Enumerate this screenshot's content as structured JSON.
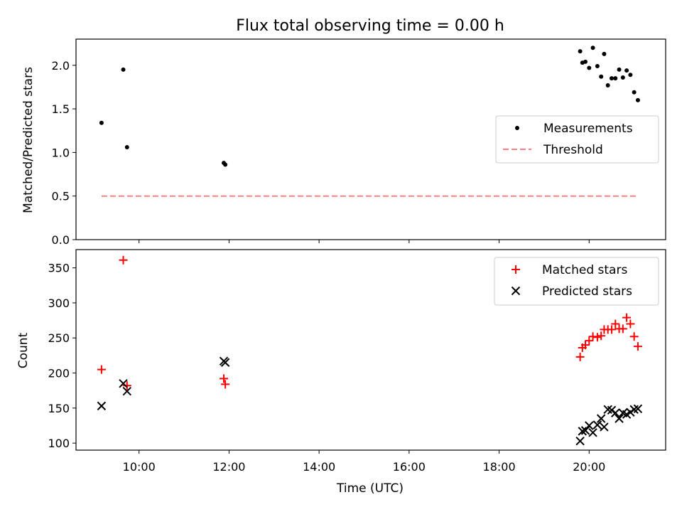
{
  "chart_data": [
    {
      "type": "scatter",
      "title": "Flux total observing time = 0.00 h",
      "xlabel": "",
      "ylabel": "Matched/Predicted stars",
      "xlim": [
        "08:36",
        "21:42"
      ],
      "ylim": [
        0,
        2.3
      ],
      "yticks": [
        0.0,
        0.5,
        1.0,
        1.5,
        2.0
      ],
      "ytick_labels": [
        "0.0",
        "0.5",
        "1.0",
        "1.5",
        "2.0"
      ],
      "grid": false,
      "legend": "center-right",
      "series": [
        {
          "name": "Measurements",
          "marker": "dot",
          "color": "#000000",
          "points": [
            [
              "09:10",
              1.34
            ],
            [
              "09:39",
              1.95
            ],
            [
              "09:44",
              1.06
            ],
            [
              "11:53",
              0.88
            ],
            [
              "11:55",
              0.86
            ],
            [
              "19:48",
              2.16
            ],
            [
              "19:51",
              2.03
            ],
            [
              "19:55",
              2.04
            ],
            [
              "20:00",
              1.97
            ],
            [
              "20:05",
              2.2
            ],
            [
              "20:11",
              1.99
            ],
            [
              "20:16",
              1.87
            ],
            [
              "20:20",
              2.13
            ],
            [
              "20:25",
              1.77
            ],
            [
              "20:30",
              1.85
            ],
            [
              "20:35",
              1.85
            ],
            [
              "20:40",
              1.95
            ],
            [
              "20:45",
              1.86
            ],
            [
              "20:50",
              1.94
            ],
            [
              "20:55",
              1.89
            ],
            [
              "21:00",
              1.69
            ],
            [
              "21:05",
              1.6
            ]
          ]
        },
        {
          "name": "Threshold",
          "marker": "dashed-line",
          "color": "#ff7f7f",
          "points": [
            [
              "09:10",
              0.5
            ],
            [
              "21:05",
              0.5
            ]
          ]
        }
      ]
    },
    {
      "type": "scatter",
      "title": "",
      "xlabel": "Time (UTC)",
      "ylabel": "Count",
      "xlim": [
        "08:36",
        "21:42"
      ],
      "ylim": [
        90,
        376
      ],
      "xticks": [
        "10:00",
        "12:00",
        "14:00",
        "16:00",
        "18:00",
        "20:00"
      ],
      "yticks": [
        100,
        150,
        200,
        250,
        300,
        350
      ],
      "ytick_labels": [
        "100",
        "150",
        "200",
        "250",
        "300",
        "350"
      ],
      "grid": false,
      "legend": "top-right",
      "series": [
        {
          "name": "Matched stars",
          "marker": "plus",
          "color": "#ff0000",
          "points": [
            [
              "09:10",
              205
            ],
            [
              "09:39",
              361
            ],
            [
              "09:44",
              182
            ],
            [
              "11:53",
              192
            ],
            [
              "11:55",
              184
            ],
            [
              "19:48",
              223
            ],
            [
              "19:51",
              236
            ],
            [
              "19:55",
              240
            ],
            [
              "20:00",
              246
            ],
            [
              "20:05",
              252
            ],
            [
              "20:11",
              251
            ],
            [
              "20:16",
              253
            ],
            [
              "20:20",
              262
            ],
            [
              "20:25",
              262
            ],
            [
              "20:30",
              262
            ],
            [
              "20:35",
              270
            ],
            [
              "20:40",
              263
            ],
            [
              "20:45",
              263
            ],
            [
              "20:50",
              279
            ],
            [
              "20:55",
              270
            ],
            [
              "21:00",
              252
            ],
            [
              "21:05",
              238
            ]
          ]
        },
        {
          "name": "Predicted stars",
          "marker": "x",
          "color": "#000000",
          "points": [
            [
              "09:10",
              153
            ],
            [
              "09:39",
              185
            ],
            [
              "09:44",
              174
            ],
            [
              "11:53",
              217
            ],
            [
              "11:55",
              215
            ],
            [
              "19:48",
              103
            ],
            [
              "19:51",
              117
            ],
            [
              "19:55",
              118
            ],
            [
              "20:00",
              125
            ],
            [
              "20:05",
              115
            ],
            [
              "20:11",
              126
            ],
            [
              "20:16",
              135
            ],
            [
              "20:20",
              123
            ],
            [
              "20:25",
              148
            ],
            [
              "20:30",
              147
            ],
            [
              "20:35",
              143
            ],
            [
              "20:40",
              135
            ],
            [
              "20:45",
              143
            ],
            [
              "20:50",
              141
            ],
            [
              "20:55",
              144
            ],
            [
              "21:00",
              148
            ],
            [
              "21:05",
              149
            ]
          ]
        }
      ]
    }
  ]
}
